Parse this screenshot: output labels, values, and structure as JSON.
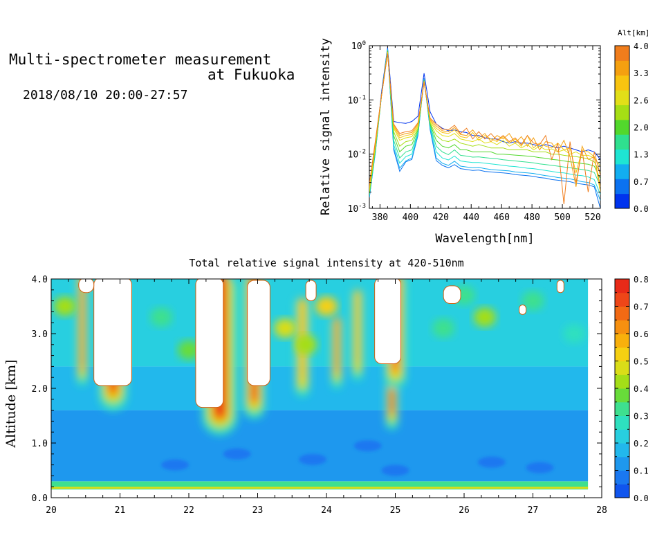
{
  "header": {
    "title_line1": "Multi-spectrometer measurement",
    "title_line2": "at Fukuoka",
    "datetime": "2018/08/10 20:00-27:57"
  },
  "chart_data": [
    {
      "type": "line",
      "title": "",
      "xlabel": "Wavelength[nm]",
      "ylabel": "Relative signal intensity",
      "x_scale": "linear",
      "y_scale": "log",
      "xlim": [
        373,
        525
      ],
      "ylim": [
        0.001,
        1
      ],
      "x_ticks": [
        380,
        400,
        420,
        440,
        460,
        480,
        500,
        520
      ],
      "y_ticks": [
        {
          "value": 0.001,
          "base": "10",
          "exp": "-3"
        },
        {
          "value": 0.01,
          "base": "10",
          "exp": "-2"
        },
        {
          "value": 0.1,
          "base": "10",
          "exp": "-1"
        },
        {
          "value": 1,
          "base": "10",
          "exp": "0"
        }
      ],
      "colorbar": {
        "title": "Alt[km]",
        "tick_labels": [
          "4.0",
          "3.3",
          "2.6",
          "2.0",
          "1.3",
          "0.7",
          "0.0"
        ],
        "colors": [
          "#0033ee",
          "#0b72f0",
          "#12aef0",
          "#1ee5d3",
          "#2fe08f",
          "#52d82c",
          "#a6de15",
          "#e2df18",
          "#f8c410",
          "#f5a010",
          "#f07d1c"
        ]
      },
      "x": [
        373,
        377,
        381,
        385,
        389,
        393,
        397,
        401,
        405,
        409,
        413,
        417,
        421,
        425,
        429,
        433,
        437,
        441,
        445,
        449,
        453,
        457,
        461,
        465,
        469,
        473,
        477,
        481,
        485,
        489,
        493,
        497,
        501,
        505,
        509,
        513,
        517,
        521,
        525
      ],
      "series": [
        {
          "color": "#0033ee",
          "values": [
            0.0016,
            0.012,
            0.14,
            0.93,
            0.04,
            0.038,
            0.037,
            0.04,
            0.05,
            0.31,
            0.06,
            0.036,
            0.03,
            0.027,
            0.028,
            0.026,
            0.025,
            0.022,
            0.022,
            0.02,
            0.019,
            0.019,
            0.017,
            0.016,
            0.017,
            0.016,
            0.016,
            0.015,
            0.014,
            0.015,
            0.014,
            0.013,
            0.014,
            0.013,
            0.012,
            0.011,
            0.012,
            0.011,
            0.008
          ]
        },
        {
          "color": "#0b72f0",
          "values": [
            0.0016,
            0.011,
            0.12,
            0.88,
            0.012,
            0.0048,
            0.0072,
            0.008,
            0.022,
            0.25,
            0.028,
            0.0076,
            0.0062,
            0.0056,
            0.0064,
            0.0054,
            0.0052,
            0.005,
            0.0051,
            0.0048,
            0.0047,
            0.0046,
            0.0045,
            0.0044,
            0.0042,
            0.0041,
            0.004,
            0.0039,
            0.0037,
            0.0036,
            0.0034,
            0.0033,
            0.0032,
            0.0031,
            0.0029,
            0.0028,
            0.0027,
            0.0025,
            0.001
          ]
        },
        {
          "color": "#12aef0",
          "values": [
            0.0016,
            0.011,
            0.12,
            0.86,
            0.013,
            0.0055,
            0.0075,
            0.0085,
            0.023,
            0.24,
            0.03,
            0.0085,
            0.0068,
            0.0062,
            0.0074,
            0.006,
            0.0058,
            0.0056,
            0.0057,
            0.0054,
            0.0052,
            0.0051,
            0.005,
            0.0049,
            0.0047,
            0.0046,
            0.0045,
            0.0044,
            0.0042,
            0.004,
            0.0039,
            0.0037,
            0.0036,
            0.0035,
            0.0033,
            0.0031,
            0.003,
            0.0027,
            0.0014
          ]
        },
        {
          "color": "#1ee5d3",
          "values": [
            0.0017,
            0.012,
            0.12,
            0.84,
            0.015,
            0.0068,
            0.009,
            0.01,
            0.025,
            0.24,
            0.032,
            0.011,
            0.0085,
            0.0078,
            0.0092,
            0.0075,
            0.0072,
            0.007,
            0.007,
            0.0068,
            0.0066,
            0.0064,
            0.0062,
            0.006,
            0.0059,
            0.0057,
            0.0055,
            0.0054,
            0.0052,
            0.005,
            0.0048,
            0.0046,
            0.0045,
            0.0043,
            0.0041,
            0.004,
            0.0038,
            0.0034,
            0.0018
          ]
        },
        {
          "color": "#2fe08f",
          "values": [
            0.0018,
            0.012,
            0.12,
            0.82,
            0.018,
            0.0085,
            0.011,
            0.012,
            0.026,
            0.23,
            0.034,
            0.014,
            0.011,
            0.0098,
            0.012,
            0.0095,
            0.0092,
            0.0088,
            0.0089,
            0.0086,
            0.0084,
            0.0082,
            0.0079,
            0.0077,
            0.0075,
            0.0073,
            0.0071,
            0.0069,
            0.0066,
            0.0064,
            0.0062,
            0.006,
            0.0058,
            0.0056,
            0.0054,
            0.0052,
            0.005,
            0.0046,
            0.0026
          ]
        },
        {
          "color": "#52d82c",
          "values": [
            0.0019,
            0.013,
            0.12,
            0.8,
            0.022,
            0.011,
            0.014,
            0.015,
            0.028,
            0.23,
            0.036,
            0.018,
            0.014,
            0.013,
            0.015,
            0.012,
            0.012,
            0.011,
            0.011,
            0.011,
            0.011,
            0.01,
            0.01,
            0.0098,
            0.0096,
            0.0094,
            0.0092,
            0.009,
            0.0086,
            0.0084,
            0.008,
            0.0078,
            0.0075,
            0.0072,
            0.007,
            0.0067,
            0.0065,
            0.006,
            0.0035
          ]
        },
        {
          "color": "#a6de15",
          "values": [
            0.002,
            0.014,
            0.12,
            0.78,
            0.026,
            0.014,
            0.017,
            0.018,
            0.03,
            0.22,
            0.038,
            0.022,
            0.018,
            0.017,
            0.019,
            0.016,
            0.015,
            0.014,
            0.015,
            0.014,
            0.013,
            0.013,
            0.013,
            0.012,
            0.012,
            0.012,
            0.012,
            0.011,
            0.011,
            0.011,
            0.01,
            0.01,
            0.0095,
            0.0092,
            0.009,
            0.0086,
            0.0082,
            0.0072,
            0.0045
          ]
        },
        {
          "color": "#e2df18",
          "values": [
            0.0022,
            0.015,
            0.12,
            0.76,
            0.03,
            0.018,
            0.02,
            0.021,
            0.032,
            0.22,
            0.04,
            0.027,
            0.022,
            0.021,
            0.024,
            0.019,
            0.018,
            0.017,
            0.019,
            0.016,
            0.017,
            0.015,
            0.018,
            0.014,
            0.016,
            0.013,
            0.015,
            0.012,
            0.014,
            0.012,
            0.0125,
            0.011,
            0.012,
            0.01,
            0.011,
            0.0095,
            0.0095,
            0.0085,
            0.006
          ]
        },
        {
          "color": "#f8c410",
          "values": [
            0.0024,
            0.016,
            0.12,
            0.74,
            0.032,
            0.02,
            0.022,
            0.023,
            0.034,
            0.22,
            0.042,
            0.03,
            0.025,
            0.024,
            0.028,
            0.021,
            0.02,
            0.025,
            0.018,
            0.022,
            0.019,
            0.017,
            0.021,
            0.016,
            0.019,
            0.014,
            0.022,
            0.013,
            0.016,
            0.014,
            0.013,
            0.016,
            0.012,
            0.013,
            0.0045,
            0.012,
            0.011,
            0.009,
            0.002
          ]
        },
        {
          "color": "#f5a010",
          "values": [
            0.0026,
            0.017,
            0.12,
            0.72,
            0.034,
            0.022,
            0.024,
            0.025,
            0.036,
            0.21,
            0.044,
            0.033,
            0.027,
            0.026,
            0.031,
            0.023,
            0.022,
            0.028,
            0.02,
            0.024,
            0.017,
            0.022,
            0.019,
            0.024,
            0.016,
            0.021,
            0.014,
            0.02,
            0.012,
            0.017,
            0.016,
            0.011,
            0.018,
            0.009,
            0.0025,
            0.014,
            0.008,
            0.009,
            0.0025
          ]
        },
        {
          "color": "#f07d1c",
          "values": [
            0.0028,
            0.018,
            0.12,
            0.7,
            0.036,
            0.024,
            0.026,
            0.027,
            0.038,
            0.21,
            0.046,
            0.036,
            0.029,
            0.028,
            0.034,
            0.024,
            0.03,
            0.019,
            0.026,
            0.019,
            0.024,
            0.018,
            0.022,
            0.017,
            0.02,
            0.015,
            0.022,
            0.016,
            0.015,
            0.022,
            0.008,
            0.016,
            0.0012,
            0.017,
            0.003,
            0.012,
            0.002,
            0.011,
            0.004
          ]
        }
      ]
    },
    {
      "type": "heatmap",
      "title": "Total relative signal intensity at 420-510nm",
      "xlabel": "",
      "ylabel": "Altitude [km]",
      "xlim": [
        20,
        28
      ],
      "ylim": [
        0,
        4
      ],
      "x_ticks": [
        "20",
        "21",
        "22",
        "23",
        "24",
        "25",
        "26",
        "27",
        "28"
      ],
      "y_ticks": [
        "0.0",
        "1.0",
        "2.0",
        "3.0",
        "4.0"
      ],
      "data_x_range": [
        20.0,
        27.8
      ],
      "data_y_range": [
        0.15,
        4.0
      ],
      "colorbar": {
        "range": [
          0,
          0.8
        ],
        "tick_labels": [
          "0.8",
          "0.7",
          "0.6",
          "0.5",
          "0.4",
          "0.3",
          "0.2",
          "0.1",
          "0.0"
        ],
        "colors": [
          "#1055ee",
          "#1a78f0",
          "#1e98ee",
          "#22b8ec",
          "#28cfe0",
          "#2ee0bf",
          "#3ee08f",
          "#68dc3a",
          "#a4de18",
          "#dadd18",
          "#f5d012",
          "#f8b00c",
          "#f69010",
          "#f26a14",
          "#ee4618",
          "#e82a18"
        ]
      },
      "cloud_columns": [
        {
          "time": 20.45,
          "top": 4.0,
          "bottom": 2.5,
          "width": 0.06,
          "intensity": 0.55
        },
        {
          "time": 20.9,
          "top": 4.0,
          "bottom": 2.05,
          "width": 0.16,
          "intensity": 0.62
        },
        {
          "time": 22.45,
          "top": 4.0,
          "bottom": 1.6,
          "width": 0.2,
          "intensity": 0.68
        },
        {
          "time": 22.95,
          "top": 4.0,
          "bottom": 1.9,
          "width": 0.12,
          "intensity": 0.62
        },
        {
          "time": 23.65,
          "top": 3.55,
          "bottom": 2.3,
          "width": 0.08,
          "intensity": 0.45
        },
        {
          "time": 24.15,
          "top": 3.2,
          "bottom": 2.45,
          "width": 0.06,
          "intensity": 0.55
        },
        {
          "time": 24.45,
          "top": 3.7,
          "bottom": 2.6,
          "width": 0.06,
          "intensity": 0.48
        },
        {
          "time": 24.95,
          "top": 4.0,
          "bottom": 1.7,
          "width": 0.07,
          "intensity": 0.66
        },
        {
          "time": 25.0,
          "top": 4.0,
          "bottom": 2.45,
          "width": 0.12,
          "intensity": 0.6
        }
      ],
      "saturated_regions": [
        {
          "time_start": 20.62,
          "time_end": 21.17,
          "alt_bottom": 2.05,
          "alt_top": 4.0
        },
        {
          "time_start": 22.1,
          "time_end": 22.5,
          "alt_bottom": 1.65,
          "alt_top": 4.0
        },
        {
          "time_start": 22.85,
          "time_end": 23.18,
          "alt_bottom": 2.05,
          "alt_top": 3.95
        },
        {
          "time_start": 24.7,
          "time_end": 25.08,
          "alt_bottom": 2.45,
          "alt_top": 4.0
        },
        {
          "time_start": 20.4,
          "time_end": 20.62,
          "alt_bottom": 3.75,
          "alt_top": 4.0
        },
        {
          "time_start": 23.7,
          "time_end": 23.85,
          "alt_bottom": 3.6,
          "alt_top": 3.95
        },
        {
          "time_start": 25.7,
          "time_end": 25.95,
          "alt_bottom": 3.55,
          "alt_top": 3.85
        },
        {
          "time_start": 26.8,
          "time_end": 26.9,
          "alt_bottom": 3.35,
          "alt_top": 3.5
        },
        {
          "time_start": 27.35,
          "time_end": 27.45,
          "alt_bottom": 3.75,
          "alt_top": 3.95
        }
      ],
      "background_levels": [
        {
          "alt_range": [
            0.15,
            0.3
          ],
          "value": 0.32
        },
        {
          "alt_range": [
            0.3,
            1.6
          ],
          "value": 0.12
        },
        {
          "alt_range": [
            1.6,
            2.4
          ],
          "value": 0.18
        },
        {
          "alt_range": [
            2.4,
            4.0
          ],
          "value": 0.24
        }
      ]
    }
  ]
}
